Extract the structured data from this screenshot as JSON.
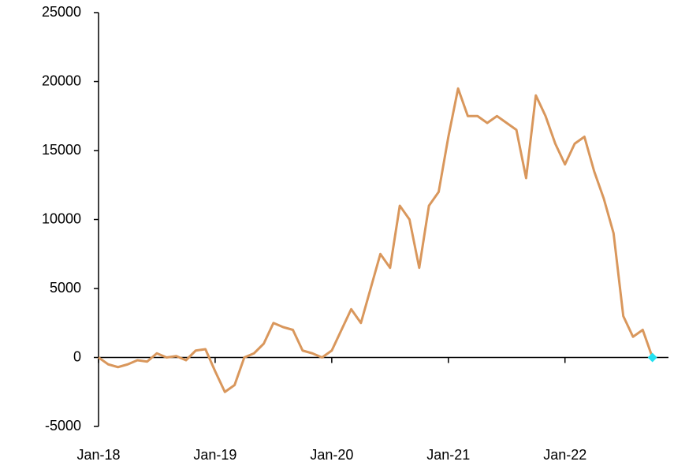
{
  "chart_data": {
    "type": "line",
    "x": [
      "2018-01",
      "2018-02",
      "2018-03",
      "2018-04",
      "2018-05",
      "2018-06",
      "2018-07",
      "2018-08",
      "2018-09",
      "2018-10",
      "2018-11",
      "2018-12",
      "2019-01",
      "2019-02",
      "2019-03",
      "2019-04",
      "2019-05",
      "2019-06",
      "2019-07",
      "2019-08",
      "2019-09",
      "2019-10",
      "2019-11",
      "2019-12",
      "2020-01",
      "2020-02",
      "2020-03",
      "2020-04",
      "2020-05",
      "2020-06",
      "2020-07",
      "2020-08",
      "2020-09",
      "2020-10",
      "2020-11",
      "2020-12",
      "2021-01",
      "2021-02",
      "2021-03",
      "2021-04",
      "2021-05",
      "2021-06",
      "2021-07",
      "2021-08",
      "2021-09",
      "2021-10",
      "2021-11",
      "2021-12",
      "2022-01",
      "2022-02",
      "2022-03",
      "2022-04",
      "2022-05",
      "2022-06",
      "2022-07",
      "2022-08",
      "2022-09",
      "2022-10"
    ],
    "series": [
      {
        "color": "#d9975c",
        "values": [
          0,
          -500,
          -700,
          -500,
          -200,
          -300,
          300,
          0,
          100,
          -200,
          500,
          600,
          -1000,
          -2500,
          -2000,
          0,
          300,
          1000,
          2500,
          2200,
          2000,
          500,
          300,
          0,
          500,
          2000,
          3500,
          2500,
          5000,
          7500,
          6500,
          11000,
          10000,
          6500,
          11000,
          12000,
          16000,
          19500,
          17500,
          17500,
          17000,
          17500,
          17000,
          16500,
          13000,
          19000,
          17500,
          15500,
          14000,
          15500,
          16000,
          13500,
          11500,
          9000,
          3000,
          1500,
          2000,
          0
        ]
      }
    ],
    "end_marker": {
      "x": "2022-10",
      "value": 0,
      "color": "#22e0f0"
    },
    "xlim": [
      "2018-01",
      "2022-11"
    ],
    "xticks": [
      {
        "value": "2018-01",
        "label": "Jan-18"
      },
      {
        "value": "2019-01",
        "label": "Jan-19"
      },
      {
        "value": "2020-01",
        "label": "Jan-20"
      },
      {
        "value": "2021-01",
        "label": "Jan-21"
      },
      {
        "value": "2022-01",
        "label": "Jan-22"
      }
    ],
    "ylim": [
      -5000,
      25000
    ],
    "yticks": [
      -5000,
      0,
      5000,
      10000,
      15000,
      20000,
      25000
    ]
  }
}
